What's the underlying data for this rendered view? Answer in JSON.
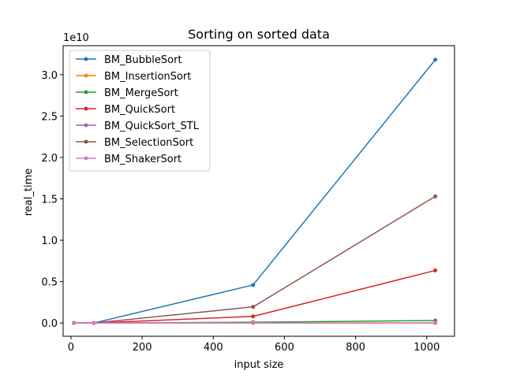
{
  "chart_data": {
    "type": "line",
    "title": "Sorting on sorted data",
    "xlabel": "input size",
    "ylabel": "real_time",
    "y_offset_text": "1e10",
    "xlim": [
      -22,
      1078
    ],
    "ylim": [
      -0.16,
      3.35
    ],
    "y_scale_exponent": 10,
    "x_ticks": [
      0,
      200,
      400,
      600,
      800,
      1000
    ],
    "y_ticks": [
      0.0,
      0.5,
      1.0,
      1.5,
      2.0,
      2.5,
      3.0
    ],
    "y_tick_labels": [
      "0.0",
      "0.5",
      "1.0",
      "1.5",
      "2.0",
      "2.5",
      "3.0"
    ],
    "legend_position": "upper-left",
    "grid": false,
    "x": [
      8,
      64,
      512,
      1024
    ],
    "series": [
      {
        "name": "BM_BubbleSort",
        "color": "#1f77b4",
        "values": [
          0.0,
          0.0,
          0.46,
          3.18
        ]
      },
      {
        "name": "BM_InsertionSort",
        "color": "#ff7f0e",
        "values": [
          0.0,
          0.0,
          0.0,
          0.0
        ]
      },
      {
        "name": "BM_MergeSort",
        "color": "#2ca02c",
        "values": [
          0.0,
          0.0,
          0.01,
          0.03
        ]
      },
      {
        "name": "BM_QuickSort",
        "color": "#d62728",
        "values": [
          0.0,
          0.0,
          0.08,
          0.635
        ]
      },
      {
        "name": "BM_QuickSort_STL",
        "color": "#9467bd",
        "values": [
          0.0,
          0.0,
          0.0,
          0.0
        ]
      },
      {
        "name": "BM_SelectionSort",
        "color": "#8c564b",
        "values": [
          0.0,
          0.0,
          0.195,
          1.53
        ]
      },
      {
        "name": "BM_ShakerSort",
        "color": "#e377c2",
        "values": [
          0.0,
          0.0,
          0.0,
          0.0
        ]
      }
    ]
  }
}
